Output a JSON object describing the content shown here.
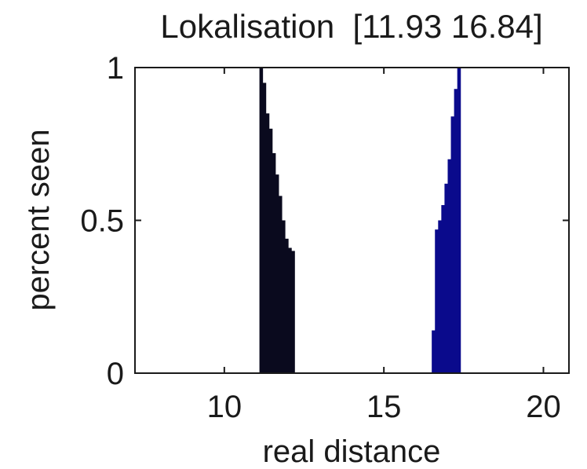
{
  "chart_data": {
    "type": "bar",
    "title": "Lokalisation  [11.93 16.84]",
    "xlabel": "real distance",
    "ylabel": "percent seen",
    "xlim": [
      7.2,
      20.8
    ],
    "ylim": [
      0,
      1
    ],
    "xticks": [
      10,
      15,
      20
    ],
    "yticks": [
      0,
      0.5,
      1
    ],
    "xtick_labels": [
      "10",
      "15",
      "20"
    ],
    "ytick_labels": [
      "0",
      "0.5",
      "1"
    ],
    "grid": false,
    "series": [
      {
        "color": "#0a0a1e",
        "bars": [
          {
            "x0": 11.1,
            "x1": 11.2,
            "y": 1.0
          },
          {
            "x0": 11.2,
            "x1": 11.3,
            "y": 0.95
          },
          {
            "x0": 11.3,
            "x1": 11.4,
            "y": 0.85
          },
          {
            "x0": 11.4,
            "x1": 11.5,
            "y": 0.8
          },
          {
            "x0": 11.5,
            "x1": 11.6,
            "y": 0.72
          },
          {
            "x0": 11.6,
            "x1": 11.7,
            "y": 0.65
          },
          {
            "x0": 11.7,
            "x1": 11.8,
            "y": 0.58
          },
          {
            "x0": 11.8,
            "x1": 11.9,
            "y": 0.5
          },
          {
            "x0": 11.9,
            "x1": 12.0,
            "y": 0.44
          },
          {
            "x0": 12.0,
            "x1": 12.1,
            "y": 0.41
          },
          {
            "x0": 12.1,
            "x1": 12.2,
            "y": 0.4
          }
        ]
      },
      {
        "color": "#0a0a8c",
        "bars": [
          {
            "x0": 16.5,
            "x1": 16.6,
            "y": 0.14
          },
          {
            "x0": 16.6,
            "x1": 16.7,
            "y": 0.47
          },
          {
            "x0": 16.7,
            "x1": 16.8,
            "y": 0.5
          },
          {
            "x0": 16.8,
            "x1": 16.9,
            "y": 0.55
          },
          {
            "x0": 16.9,
            "x1": 17.0,
            "y": 0.62
          },
          {
            "x0": 17.0,
            "x1": 17.1,
            "y": 0.7
          },
          {
            "x0": 17.1,
            "x1": 17.2,
            "y": 0.84
          },
          {
            "x0": 17.2,
            "x1": 17.3,
            "y": 0.93
          },
          {
            "x0": 17.3,
            "x1": 17.4,
            "y": 1.0
          }
        ]
      }
    ]
  }
}
